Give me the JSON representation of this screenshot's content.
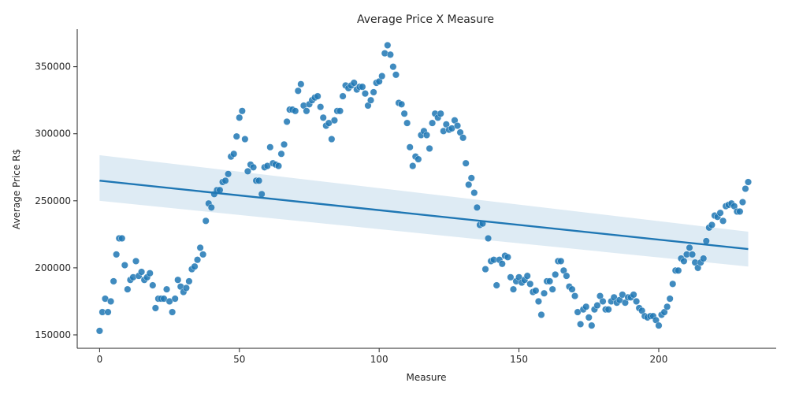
{
  "chart_data": {
    "type": "scatter",
    "title": "Average Price X Measure",
    "xlabel": "Measure",
    "ylabel": "Average Price R$",
    "xlim": [
      -8,
      242
    ],
    "ylim": [
      140000,
      378000
    ],
    "x_ticks": [
      0,
      50,
      100,
      150,
      200
    ],
    "y_ticks": [
      150000,
      200000,
      250000,
      300000,
      350000
    ],
    "x_tick_labels": [
      "0",
      "50",
      "100",
      "150",
      "200"
    ],
    "y_tick_labels": [
      "150000",
      "200000",
      "250000",
      "300000",
      "350000"
    ],
    "grid": false,
    "legend": false,
    "point_color": "#1f77b4",
    "regression": {
      "x_start": 0,
      "y_start": 265000,
      "x_end": 232,
      "y_end": 214000,
      "ci_start": [
        250000,
        284000
      ],
      "ci_end": [
        201000,
        227000
      ],
      "color": "#1f77b4",
      "band_color": "#1f77b4"
    },
    "points": [
      [
        0,
        153000
      ],
      [
        1,
        167000
      ],
      [
        2,
        177000
      ],
      [
        3,
        167000
      ],
      [
        4,
        175000
      ],
      [
        5,
        190000
      ],
      [
        6,
        210000
      ],
      [
        7,
        222000
      ],
      [
        8,
        222000
      ],
      [
        9,
        202000
      ],
      [
        10,
        184000
      ],
      [
        11,
        191000
      ],
      [
        12,
        193000
      ],
      [
        13,
        205000
      ],
      [
        14,
        194000
      ],
      [
        15,
        197000
      ],
      [
        16,
        191000
      ],
      [
        17,
        193000
      ],
      [
        18,
        196000
      ],
      [
        19,
        187000
      ],
      [
        20,
        170000
      ],
      [
        21,
        177000
      ],
      [
        22,
        177000
      ],
      [
        23,
        177000
      ],
      [
        24,
        184000
      ],
      [
        25,
        175000
      ],
      [
        26,
        167000
      ],
      [
        27,
        177000
      ],
      [
        28,
        191000
      ],
      [
        29,
        186000
      ],
      [
        30,
        182000
      ],
      [
        31,
        185000
      ],
      [
        32,
        190000
      ],
      [
        33,
        199000
      ],
      [
        34,
        201000
      ],
      [
        35,
        206000
      ],
      [
        36,
        215000
      ],
      [
        37,
        210000
      ],
      [
        38,
        235000
      ],
      [
        39,
        248000
      ],
      [
        40,
        245000
      ],
      [
        41,
        255000
      ],
      [
        42,
        258000
      ],
      [
        43,
        258000
      ],
      [
        44,
        264000
      ],
      [
        45,
        265000
      ],
      [
        46,
        270000
      ],
      [
        47,
        283000
      ],
      [
        48,
        285000
      ],
      [
        49,
        298000
      ],
      [
        50,
        312000
      ],
      [
        51,
        317000
      ],
      [
        52,
        296000
      ],
      [
        53,
        272000
      ],
      [
        54,
        277000
      ],
      [
        55,
        275000
      ],
      [
        56,
        265000
      ],
      [
        57,
        265000
      ],
      [
        58,
        255000
      ],
      [
        59,
        275000
      ],
      [
        60,
        276000
      ],
      [
        61,
        290000
      ],
      [
        62,
        278000
      ],
      [
        63,
        277000
      ],
      [
        64,
        276000
      ],
      [
        65,
        285000
      ],
      [
        66,
        292000
      ],
      [
        67,
        309000
      ],
      [
        68,
        318000
      ],
      [
        69,
        318000
      ],
      [
        70,
        317000
      ],
      [
        71,
        332000
      ],
      [
        72,
        337000
      ],
      [
        73,
        321000
      ],
      [
        74,
        317000
      ],
      [
        75,
        322000
      ],
      [
        76,
        325000
      ],
      [
        77,
        327000
      ],
      [
        78,
        328000
      ],
      [
        79,
        320000
      ],
      [
        80,
        312000
      ],
      [
        81,
        306000
      ],
      [
        82,
        308000
      ],
      [
        83,
        296000
      ],
      [
        84,
        310000
      ],
      [
        85,
        317000
      ],
      [
        86,
        317000
      ],
      [
        87,
        328000
      ],
      [
        88,
        336000
      ],
      [
        89,
        334000
      ],
      [
        90,
        336000
      ],
      [
        91,
        338000
      ],
      [
        92,
        333000
      ],
      [
        93,
        335000
      ],
      [
        94,
        335000
      ],
      [
        95,
        330000
      ],
      [
        96,
        321000
      ],
      [
        97,
        325000
      ],
      [
        98,
        331000
      ],
      [
        99,
        338000
      ],
      [
        100,
        339000
      ],
      [
        101,
        343000
      ],
      [
        102,
        360000
      ],
      [
        103,
        366000
      ],
      [
        104,
        359000
      ],
      [
        105,
        350000
      ],
      [
        106,
        344000
      ],
      [
        107,
        323000
      ],
      [
        108,
        322000
      ],
      [
        109,
        315000
      ],
      [
        110,
        308000
      ],
      [
        111,
        290000
      ],
      [
        112,
        276000
      ],
      [
        113,
        283000
      ],
      [
        114,
        281000
      ],
      [
        115,
        299000
      ],
      [
        116,
        302000
      ],
      [
        117,
        299000
      ],
      [
        118,
        289000
      ],
      [
        119,
        308000
      ],
      [
        120,
        315000
      ],
      [
        121,
        312000
      ],
      [
        122,
        315000
      ],
      [
        123,
        302000
      ],
      [
        124,
        307000
      ],
      [
        125,
        303000
      ],
      [
        126,
        304000
      ],
      [
        127,
        310000
      ],
      [
        128,
        306000
      ],
      [
        129,
        301000
      ],
      [
        130,
        297000
      ],
      [
        131,
        278000
      ],
      [
        132,
        262000
      ],
      [
        133,
        267000
      ],
      [
        134,
        256000
      ],
      [
        135,
        245000
      ],
      [
        136,
        232000
      ],
      [
        137,
        233000
      ],
      [
        138,
        199000
      ],
      [
        139,
        222000
      ],
      [
        140,
        205000
      ],
      [
        141,
        206000
      ],
      [
        142,
        187000
      ],
      [
        143,
        206000
      ],
      [
        144,
        203000
      ],
      [
        145,
        209000
      ],
      [
        146,
        208000
      ],
      [
        147,
        193000
      ],
      [
        148,
        184000
      ],
      [
        149,
        190000
      ],
      [
        150,
        193000
      ],
      [
        151,
        189000
      ],
      [
        152,
        191000
      ],
      [
        153,
        194000
      ],
      [
        154,
        188000
      ],
      [
        155,
        182000
      ],
      [
        156,
        183000
      ],
      [
        157,
        175000
      ],
      [
        158,
        165000
      ],
      [
        159,
        181000
      ],
      [
        160,
        190000
      ],
      [
        161,
        190000
      ],
      [
        162,
        184000
      ],
      [
        163,
        195000
      ],
      [
        164,
        205000
      ],
      [
        165,
        205000
      ],
      [
        166,
        198000
      ],
      [
        167,
        194000
      ],
      [
        168,
        186000
      ],
      [
        169,
        184000
      ],
      [
        170,
        179000
      ],
      [
        171,
        167000
      ],
      [
        172,
        158000
      ],
      [
        173,
        169000
      ],
      [
        174,
        171000
      ],
      [
        175,
        163000
      ],
      [
        176,
        157000
      ],
      [
        177,
        169000
      ],
      [
        178,
        172000
      ],
      [
        179,
        179000
      ],
      [
        180,
        175000
      ],
      [
        181,
        169000
      ],
      [
        182,
        169000
      ],
      [
        183,
        175000
      ],
      [
        184,
        178000
      ],
      [
        185,
        174000
      ],
      [
        186,
        176000
      ],
      [
        187,
        180000
      ],
      [
        188,
        174000
      ],
      [
        189,
        178000
      ],
      [
        190,
        178000
      ],
      [
        191,
        180000
      ],
      [
        192,
        175000
      ],
      [
        193,
        170000
      ],
      [
        194,
        168000
      ],
      [
        195,
        164000
      ],
      [
        196,
        163000
      ],
      [
        197,
        164000
      ],
      [
        198,
        164000
      ],
      [
        199,
        161000
      ],
      [
        200,
        157000
      ],
      [
        201,
        165000
      ],
      [
        202,
        167000
      ],
      [
        203,
        171000
      ],
      [
        204,
        177000
      ],
      [
        205,
        188000
      ],
      [
        206,
        198000
      ],
      [
        207,
        198000
      ],
      [
        208,
        207000
      ],
      [
        209,
        205000
      ],
      [
        210,
        210000
      ],
      [
        211,
        215000
      ],
      [
        212,
        210000
      ],
      [
        213,
        204000
      ],
      [
        214,
        200000
      ],
      [
        215,
        204000
      ],
      [
        216,
        207000
      ],
      [
        217,
        220000
      ],
      [
        218,
        230000
      ],
      [
        219,
        232000
      ],
      [
        220,
        239000
      ],
      [
        221,
        238000
      ],
      [
        222,
        241000
      ],
      [
        223,
        235000
      ],
      [
        224,
        246000
      ],
      [
        225,
        247000
      ],
      [
        226,
        248000
      ],
      [
        227,
        246000
      ],
      [
        228,
        242000
      ],
      [
        229,
        242000
      ],
      [
        230,
        249000
      ],
      [
        231,
        259000
      ],
      [
        232,
        264000
      ]
    ]
  }
}
